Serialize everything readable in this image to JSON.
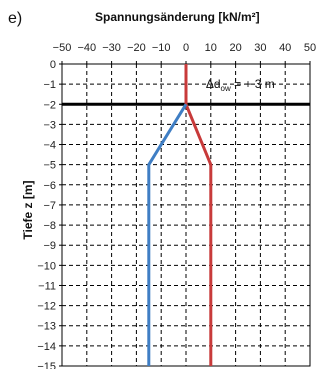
{
  "panel_label": "e)",
  "chart_data": {
    "type": "line",
    "title": "Spannungsänderung [kN/m²]",
    "ylabel": "Tiefe z [m]",
    "xlim": [
      -50,
      50
    ],
    "ylim": [
      -15,
      0
    ],
    "x_ticks": [
      -50,
      -40,
      -30,
      -20,
      -10,
      0,
      10,
      20,
      30,
      40,
      50
    ],
    "y_ticks": [
      0,
      -1,
      -2,
      -3,
      -4,
      -5,
      -6,
      -7,
      -8,
      -9,
      -10,
      -11,
      -12,
      -13,
      -14,
      -15
    ],
    "grid": true,
    "grid_style": "dashed",
    "x_axis_position": "top",
    "series": [
      {
        "color": "#c83a3a",
        "points": [
          [
            0,
            0
          ],
          [
            0,
            -2
          ],
          [
            10,
            -5
          ],
          [
            10,
            -15
          ]
        ]
      },
      {
        "color": "#3f7ec4",
        "points": [
          [
            0,
            -2
          ],
          [
            -15,
            -5
          ],
          [
            -15,
            -15
          ]
        ]
      }
    ],
    "reference_line": {
      "y": -2,
      "color": "#000000"
    },
    "annotation": {
      "main": "Δd",
      "sub": "ow",
      "rest": " = + 3 m",
      "x": 8,
      "y": -1
    }
  }
}
